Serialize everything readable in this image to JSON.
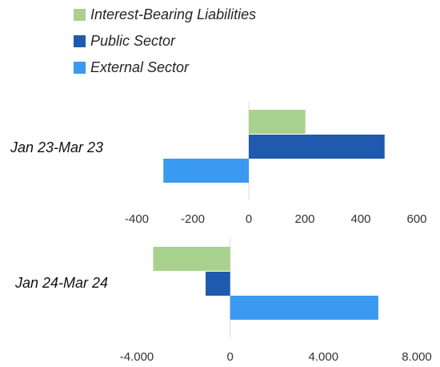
{
  "chart_data": [
    {
      "type": "bar",
      "orientation": "horizontal",
      "category": "Jan 23-Mar 23",
      "series": [
        {
          "name": "Interest-Bearing Liabilities",
          "value": 202,
          "color": "#A9D18E"
        },
        {
          "name": "Public Sector",
          "value": 485,
          "color": "#1F5AAE"
        },
        {
          "name": "External Sector",
          "value": -305,
          "color": "#3A99F0"
        }
      ],
      "xlim": [
        -400,
        600
      ],
      "xticks": [
        "-400",
        "-200",
        "0",
        "200",
        "400",
        "600"
      ],
      "xtick_values": [
        -400,
        -200,
        0,
        200,
        400,
        600
      ],
      "grid": false
    },
    {
      "type": "bar",
      "orientation": "horizontal",
      "category": "Jan 24-Mar 24",
      "series": [
        {
          "name": "Interest-Bearing Liabilities",
          "value": -3300,
          "color": "#A9D18E"
        },
        {
          "name": "Public Sector",
          "value": -1050,
          "color": "#1F5AAE"
        },
        {
          "name": "External Sector",
          "value": 6350,
          "color": "#3A99F0"
        }
      ],
      "xlim": [
        -4000,
        8000
      ],
      "xticks": [
        "-4.000",
        "0",
        "4.000",
        "8.000"
      ],
      "xtick_values": [
        -4000,
        0,
        4000,
        8000
      ],
      "grid": false
    }
  ],
  "legend": {
    "position": "top-left",
    "items": [
      {
        "label": "Interest-Bearing Liabilities",
        "color": "#A9D18E"
      },
      {
        "label": "Public Sector",
        "color": "#1F5AAE"
      },
      {
        "label": "External Sector",
        "color": "#3A99F0"
      }
    ]
  }
}
